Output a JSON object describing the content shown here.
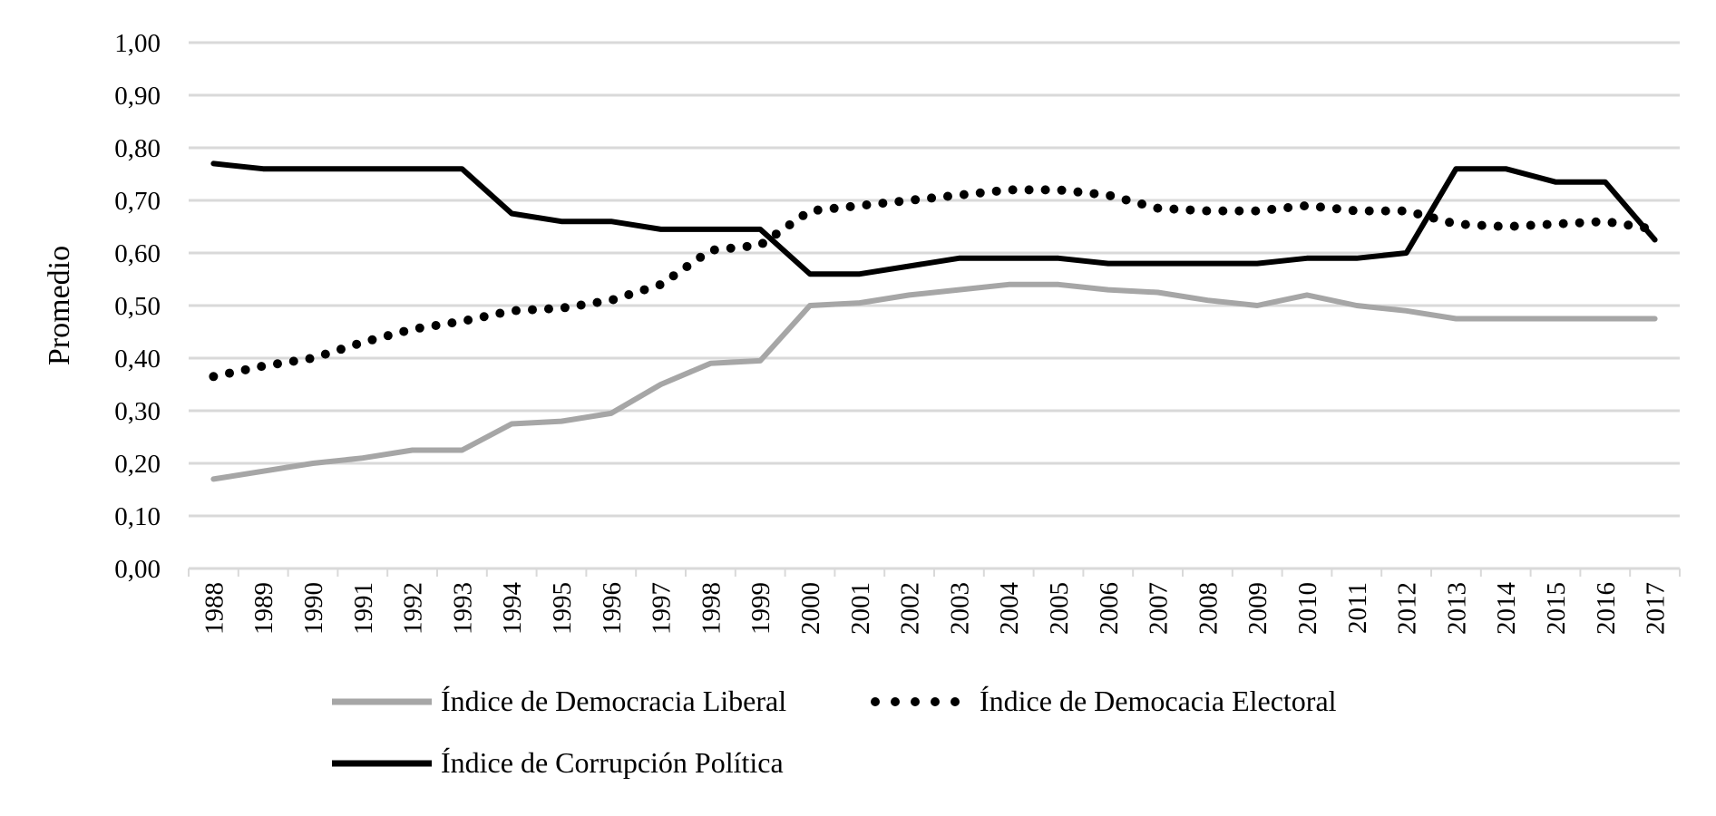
{
  "chart_data": {
    "type": "line",
    "title": "",
    "xlabel": "",
    "ylabel": "Promedio",
    "ylim": [
      0,
      1
    ],
    "grid": "horizontal",
    "legend_position": "bottom",
    "yticks": [
      "0,00",
      "0,10",
      "0,20",
      "0,30",
      "0,40",
      "0,50",
      "0,60",
      "0,70",
      "0,80",
      "0,90",
      "1,00"
    ],
    "x": [
      "1988",
      "1989",
      "1990",
      "1991",
      "1992",
      "1993",
      "1994",
      "1995",
      "1996",
      "1997",
      "1998",
      "1999",
      "2000",
      "2001",
      "2002",
      "2003",
      "2004",
      "2005",
      "2006",
      "2007",
      "2008",
      "2009",
      "2010",
      "2011",
      "2012",
      "2013",
      "2014",
      "2015",
      "2016",
      "2017"
    ],
    "series": [
      {
        "name": "Índice de Democracia Liberal",
        "color": "#a6a6a6",
        "style": "solid",
        "values": [
          0.17,
          0.185,
          0.2,
          0.21,
          0.225,
          0.225,
          0.275,
          0.28,
          0.295,
          0.35,
          0.39,
          0.395,
          0.5,
          0.505,
          0.52,
          0.53,
          0.54,
          0.54,
          0.53,
          0.525,
          0.51,
          0.5,
          0.52,
          0.5,
          0.49,
          0.475,
          0.475,
          0.475,
          0.475,
          0.475
        ]
      },
      {
        "name": "Índice de Democacia Electoral",
        "color": "#000000",
        "style": "dotted",
        "values": [
          0.365,
          0.385,
          0.4,
          0.43,
          0.455,
          0.47,
          0.49,
          0.495,
          0.51,
          0.54,
          0.605,
          0.615,
          0.68,
          0.69,
          0.7,
          0.71,
          0.72,
          0.72,
          0.71,
          0.685,
          0.68,
          0.68,
          0.69,
          0.68,
          0.68,
          0.655,
          0.65,
          0.655,
          0.66,
          0.645
        ]
      },
      {
        "name": "Índice de Corrupción Política",
        "color": "#000000",
        "style": "solid",
        "values": [
          0.77,
          0.76,
          0.76,
          0.76,
          0.76,
          0.76,
          0.675,
          0.66,
          0.66,
          0.645,
          0.645,
          0.645,
          0.56,
          0.56,
          0.575,
          0.59,
          0.59,
          0.59,
          0.58,
          0.58,
          0.58,
          0.58,
          0.59,
          0.59,
          0.6,
          0.76,
          0.76,
          0.735,
          0.735,
          0.625
        ]
      }
    ]
  }
}
